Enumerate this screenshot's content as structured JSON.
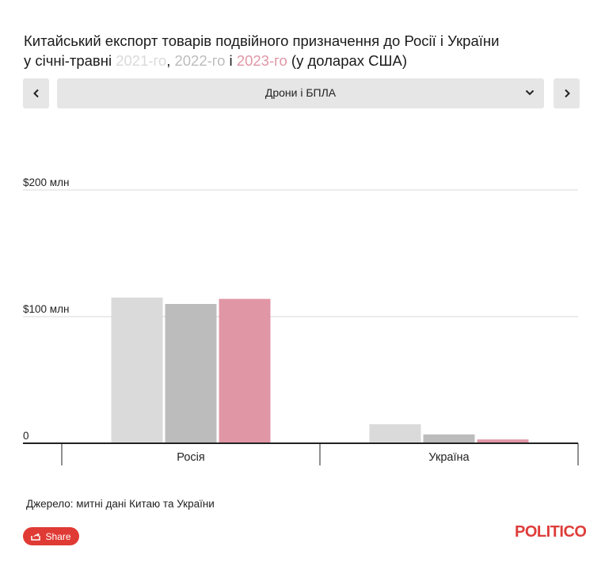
{
  "title": {
    "line1": "Китайський експорт товарів подвійного призначення до Росії і України",
    "line2_prefix": "у січні-травні ",
    "year1": "2021-го",
    "sep1": ", ",
    "year2": "2022-го",
    "sep2": " і ",
    "year3": "2023-го",
    "line2_suffix": " (у доларах США)"
  },
  "controls": {
    "selected_category": "Дрони і БПЛА",
    "prev_icon": "chevron-left-icon",
    "next_icon": "chevron-right-icon",
    "dropdown_icon": "chevron-down-icon"
  },
  "colors": {
    "y2021": "#dadada",
    "y2022": "#bcbcbc",
    "y2023": "#e096a5",
    "gridline": "#d9d9d9",
    "axis": "#222222",
    "brand": "#dd3d3a"
  },
  "chart_data": {
    "type": "bar",
    "categories": [
      "Росія",
      "Україна"
    ],
    "series": [
      {
        "name": "2021-го",
        "values": [
          115,
          15
        ]
      },
      {
        "name": "2022-го",
        "values": [
          110,
          7
        ]
      },
      {
        "name": "2023-го",
        "values": [
          114,
          3
        ]
      }
    ],
    "ylim": [
      0,
      200
    ],
    "yticks": [
      {
        "value": 0,
        "label": "0"
      },
      {
        "value": 100,
        "label": "$100 млн"
      },
      {
        "value": 200,
        "label": "$200 млн"
      }
    ],
    "grid": true
  },
  "source": "Джерело: митні дані Китаю та України",
  "share": {
    "label": "Share",
    "icon": "share-icon"
  },
  "logo": "POLITICO"
}
